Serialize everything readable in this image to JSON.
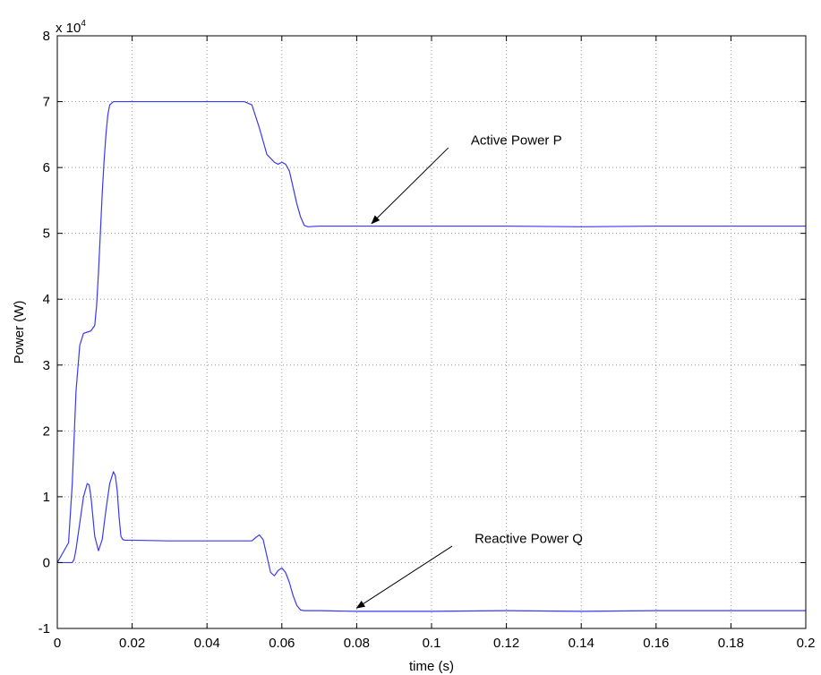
{
  "chart_data": {
    "type": "line",
    "title": "",
    "xlabel": "time (s)",
    "ylabel": "Power (W)",
    "y_exponent_label": "x 10",
    "y_exponent": "4",
    "xlim": [
      0,
      0.2
    ],
    "ylim": [
      -1,
      8
    ],
    "x_ticks": [
      0,
      0.02,
      0.04,
      0.06,
      0.08,
      0.1,
      0.12,
      0.14,
      0.16,
      0.18,
      0.2
    ],
    "x_tick_labels": [
      "0",
      "0.02",
      "0.04",
      "0.06",
      "0.08",
      "0.1",
      "0.12",
      "0.14",
      "0.16",
      "0.18",
      "0.2"
    ],
    "y_ticks": [
      -1,
      0,
      1,
      2,
      3,
      4,
      5,
      6,
      7,
      8
    ],
    "y_tick_labels": [
      "-1",
      "0",
      "1",
      "2",
      "3",
      "4",
      "5",
      "6",
      "7",
      "8"
    ],
    "grid": true,
    "line_color": "#3a3af0",
    "series": [
      {
        "x": [
          0,
          0.003,
          0.004,
          0.005,
          0.006,
          0.007,
          0.008,
          0.009,
          0.01,
          0.0105,
          0.011,
          0.0115,
          0.012,
          0.0125,
          0.013,
          0.0135,
          0.014,
          0.015,
          0.016,
          0.018,
          0.02,
          0.03,
          0.04,
          0.05,
          0.052,
          0.054,
          0.056,
          0.058,
          0.059,
          0.06,
          0.061,
          0.062,
          0.063,
          0.064,
          0.065,
          0.066,
          0.067,
          0.07,
          0.08,
          0.09,
          0.1,
          0.12,
          0.14,
          0.16,
          0.18,
          0.2
        ],
        "y": [
          0,
          0.3,
          1.2,
          2.6,
          3.3,
          3.48,
          3.5,
          3.52,
          3.6,
          3.9,
          4.4,
          5.0,
          5.6,
          6.1,
          6.5,
          6.8,
          6.95,
          7.0,
          7.0,
          7.0,
          7.0,
          7.0,
          7.0,
          7.0,
          6.95,
          6.6,
          6.2,
          6.08,
          6.05,
          6.08,
          6.05,
          5.95,
          5.7,
          5.45,
          5.25,
          5.12,
          5.1,
          5.11,
          5.11,
          5.11,
          5.11,
          5.11,
          5.1,
          5.11,
          5.11,
          5.11
        ]
      },
      {
        "x": [
          0,
          0.004,
          0.0045,
          0.005,
          0.006,
          0.007,
          0.008,
          0.0085,
          0.009,
          0.0095,
          0.01,
          0.011,
          0.012,
          0.013,
          0.014,
          0.015,
          0.0155,
          0.016,
          0.0165,
          0.017,
          0.0175,
          0.018,
          0.019,
          0.02,
          0.03,
          0.04,
          0.052,
          0.053,
          0.054,
          0.055,
          0.056,
          0.057,
          0.058,
          0.059,
          0.06,
          0.061,
          0.062,
          0.063,
          0.064,
          0.065,
          0.066,
          0.067,
          0.07,
          0.08,
          0.1,
          0.12,
          0.14,
          0.16,
          0.18,
          0.2
        ],
        "y": [
          0,
          0,
          0.05,
          0.2,
          0.6,
          1.0,
          1.2,
          1.18,
          1.0,
          0.7,
          0.4,
          0.18,
          0.35,
          0.8,
          1.2,
          1.38,
          1.32,
          1.1,
          0.7,
          0.4,
          0.35,
          0.34,
          0.34,
          0.34,
          0.33,
          0.33,
          0.33,
          0.38,
          0.42,
          0.35,
          0.1,
          -0.15,
          -0.2,
          -0.12,
          -0.08,
          -0.15,
          -0.3,
          -0.5,
          -0.65,
          -0.72,
          -0.73,
          -0.73,
          -0.73,
          -0.74,
          -0.74,
          -0.73,
          -0.74,
          -0.73,
          -0.73,
          -0.73
        ]
      }
    ],
    "annotations": [
      {
        "text": "Active Power P",
        "text_x": 0.1105,
        "text_y": 6.35,
        "arrow_from_x": 0.1045,
        "arrow_from_y": 6.3,
        "arrow_to_x": 0.084,
        "arrow_to_y": 5.15
      },
      {
        "text": "Reactive Power Q",
        "text_x": 0.1115,
        "text_y": 0.3,
        "arrow_from_x": 0.1055,
        "arrow_from_y": 0.25,
        "arrow_to_x": 0.08,
        "arrow_to_y": -0.69
      }
    ]
  }
}
